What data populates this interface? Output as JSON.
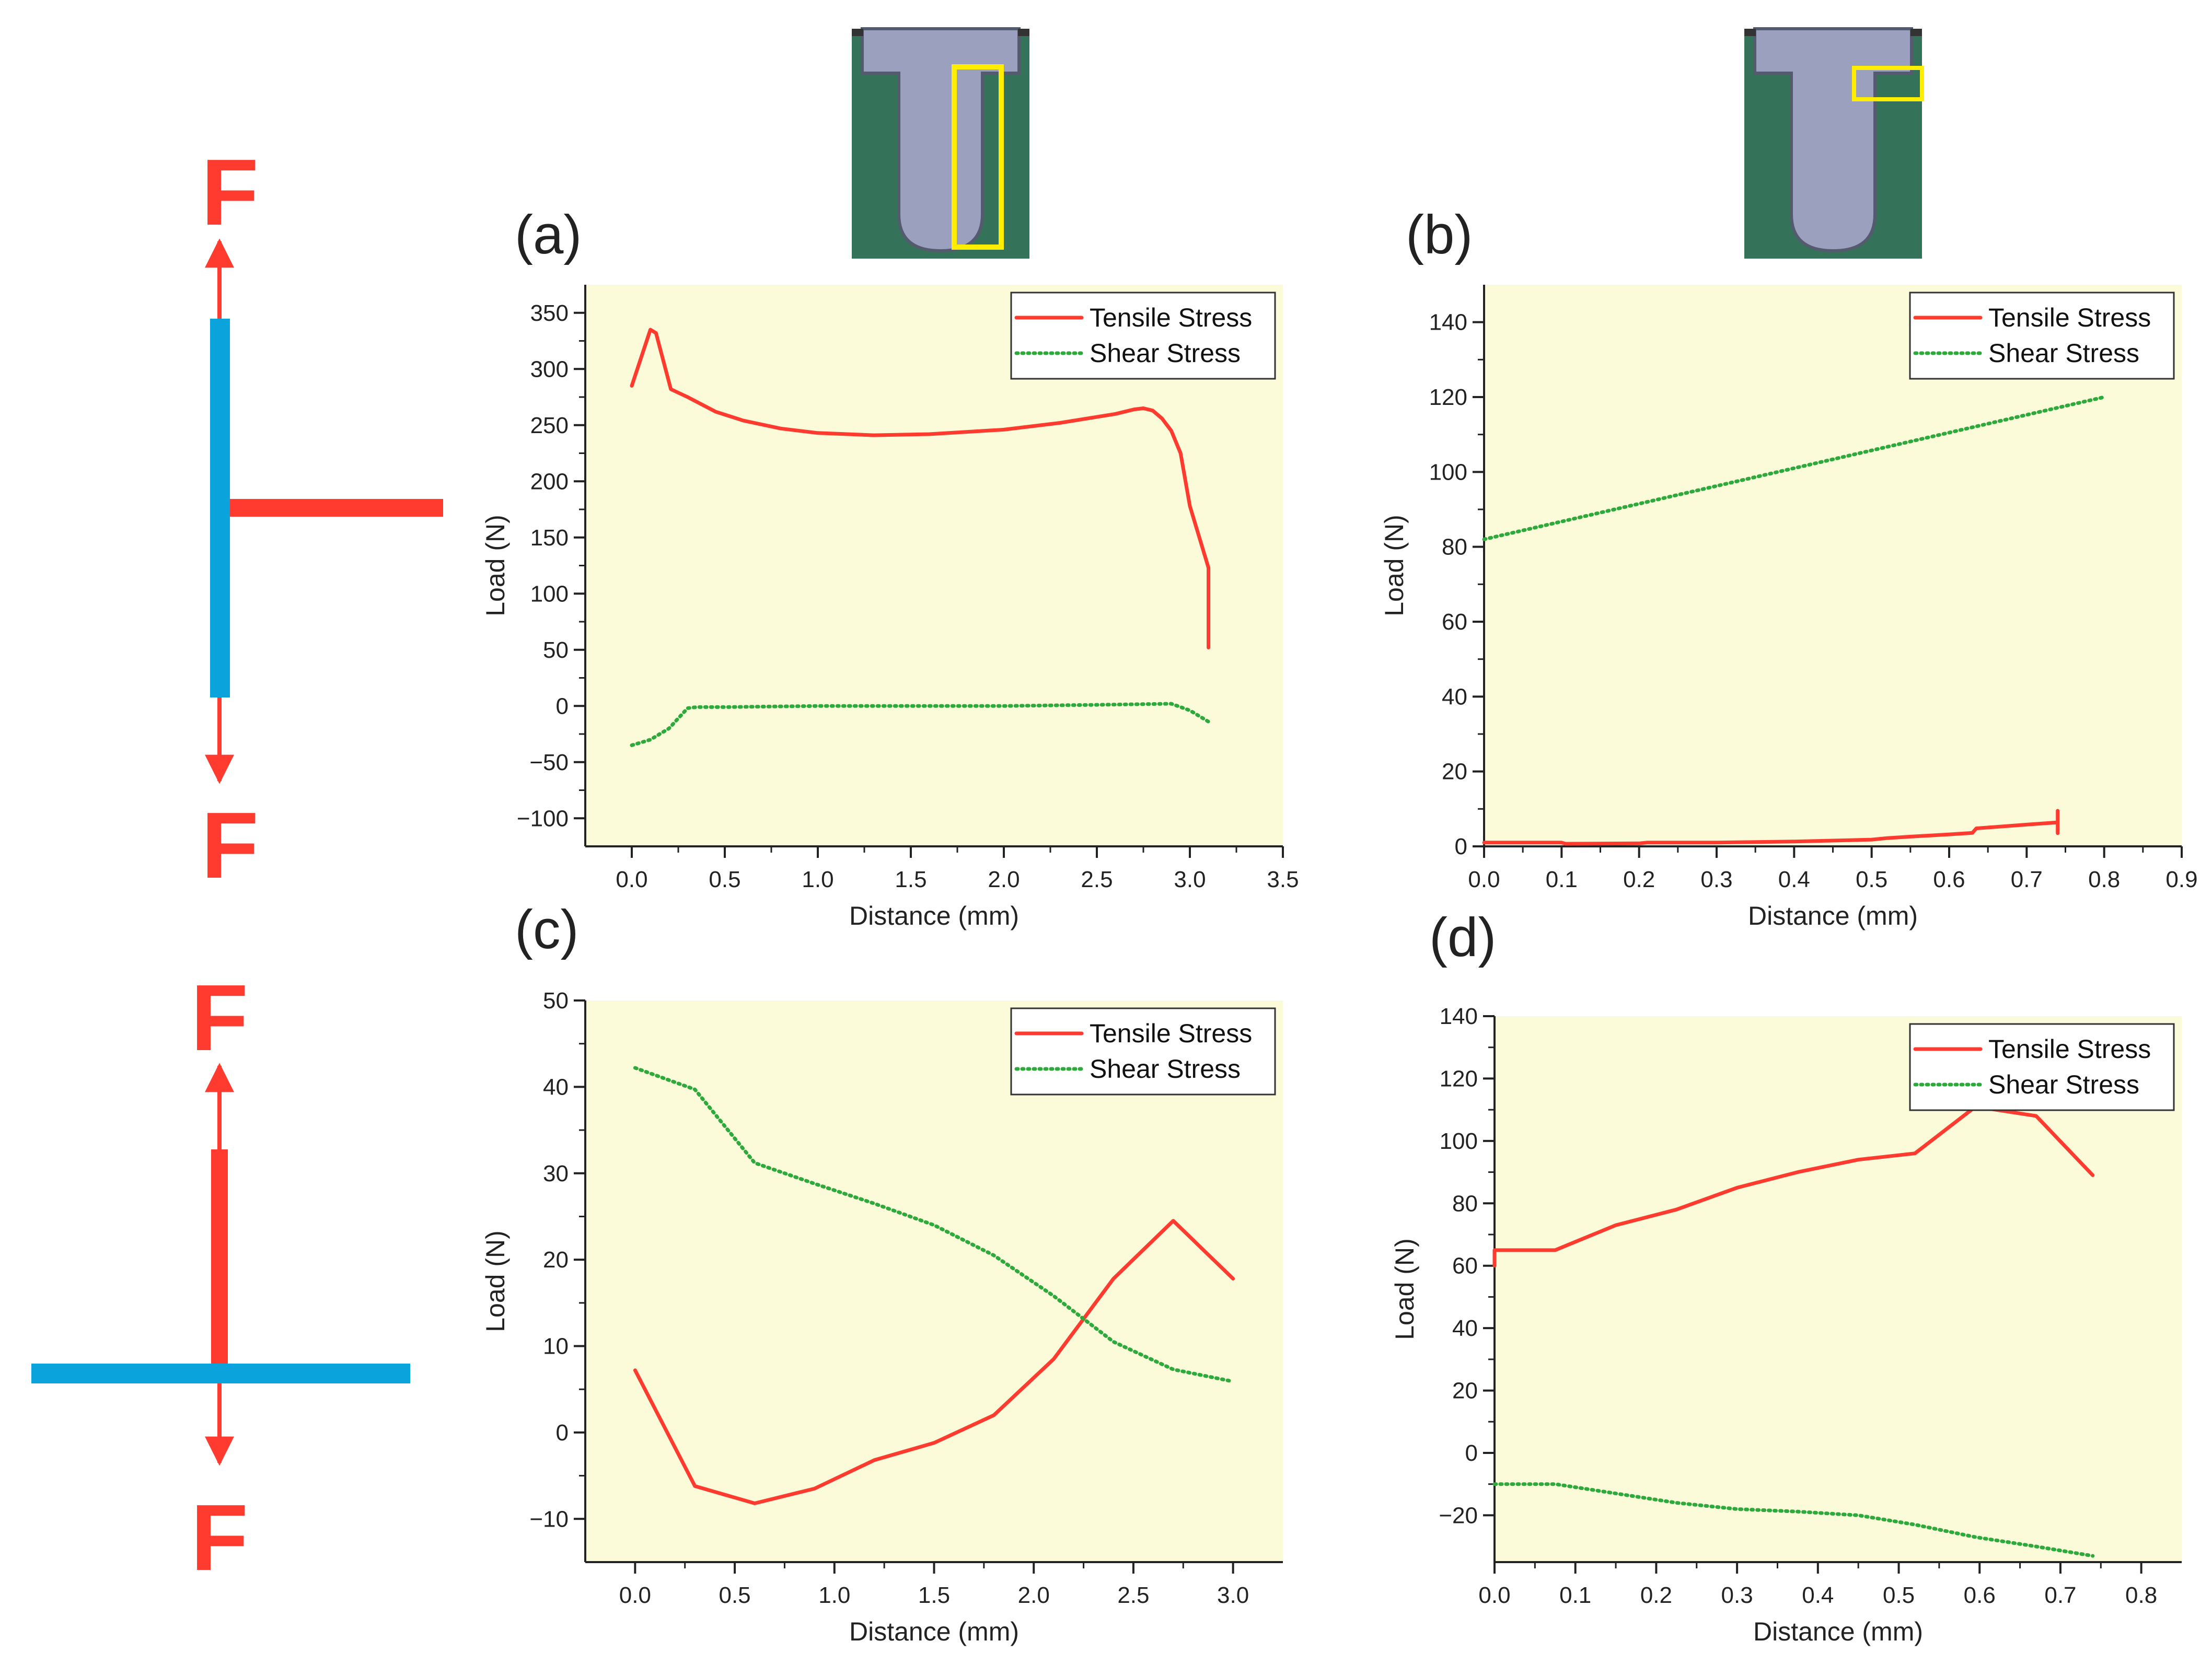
{
  "figure": {
    "force_label": "F",
    "colors": {
      "tensile": "#ff3b30",
      "shear": "#2eaa3c",
      "plot_bg": "#fbfad9",
      "beam": "#0aa3dc",
      "force": "#ff3b30",
      "mold_green": "#347259",
      "part_gray": "#9aa0bd",
      "highlight": "#ffee00"
    },
    "inset_icons": [
      "cross-section-a-icon",
      "cross-section-b-icon"
    ],
    "schematic_icons": [
      "t-joint-tension-icon",
      "t-joint-pull-icon"
    ]
  },
  "chart_data": [
    {
      "id": "a",
      "panel_label": "(a)",
      "type": "line",
      "xlabel": "Distance (mm)",
      "ylabel": "Load (N)",
      "xlim": [
        -0.25,
        3.5
      ],
      "ylim": [
        -125,
        375
      ],
      "xticks": [
        0.0,
        0.5,
        1.0,
        1.5,
        2.0,
        2.5,
        3.0,
        3.5
      ],
      "xtick_labels": [
        "0.0",
        "0.5",
        "1.0",
        "1.5",
        "2.0",
        "2.5",
        "3.0",
        "3.5"
      ],
      "yticks": [
        -100,
        -50,
        0,
        50,
        100,
        150,
        200,
        250,
        300,
        350
      ],
      "ytick_labels": [
        "−100",
        "−50",
        "0",
        "50",
        "100",
        "150",
        "200",
        "250",
        "300",
        "350"
      ],
      "legend_position": "top-right",
      "series": [
        {
          "name": "Tensile Stress",
          "style": "solid",
          "x": [
            0.0,
            0.1,
            0.13,
            0.21,
            0.3,
            0.45,
            0.6,
            0.8,
            1.0,
            1.3,
            1.6,
            2.0,
            2.3,
            2.6,
            2.7,
            2.75,
            2.8,
            2.85,
            2.9,
            2.95,
            3.0,
            3.1,
            3.1
          ],
          "y": [
            285,
            335,
            332,
            282,
            275,
            262,
            254,
            247,
            243,
            241,
            242,
            246,
            252,
            260,
            264,
            265,
            263,
            256,
            245,
            225,
            178,
            123,
            52
          ]
        },
        {
          "name": "Shear Stress",
          "style": "dotted",
          "x": [
            0.0,
            0.1,
            0.2,
            0.3,
            0.35,
            0.5,
            1.0,
            1.5,
            2.0,
            2.5,
            2.9,
            3.0,
            3.1
          ],
          "y": [
            -35,
            -30,
            -20,
            -2,
            -1,
            -1,
            0,
            0,
            0,
            1,
            2,
            -4,
            -14
          ]
        }
      ]
    },
    {
      "id": "b",
      "panel_label": "(b)",
      "type": "line",
      "xlabel": "Distance (mm)",
      "ylabel": "Load (N)",
      "xlim": [
        0.0,
        0.9
      ],
      "ylim": [
        0,
        150
      ],
      "xticks": [
        0.0,
        0.1,
        0.2,
        0.3,
        0.4,
        0.5,
        0.6,
        0.7,
        0.8,
        0.9
      ],
      "xtick_labels": [
        "0.0",
        "0.1",
        "0.2",
        "0.3",
        "0.4",
        "0.5",
        "0.6",
        "0.7",
        "0.8",
        "0.9"
      ],
      "yticks": [
        0,
        20,
        40,
        60,
        80,
        100,
        120,
        140
      ],
      "ytick_labels": [
        "0",
        "20",
        "40",
        "60",
        "80",
        "100",
        "120",
        "140"
      ],
      "legend_position": "top-right",
      "series": [
        {
          "name": "Tensile Stress",
          "style": "solid",
          "x": [
            0.0,
            0.1,
            0.105,
            0.2,
            0.21,
            0.3,
            0.4,
            0.5,
            0.52,
            0.55,
            0.6,
            0.63,
            0.635,
            0.7,
            0.74,
            0.74,
            0.74
          ],
          "y": [
            1.0,
            1.0,
            0.7,
            0.8,
            1.0,
            1.0,
            1.3,
            1.8,
            2.2,
            2.6,
            3.2,
            3.6,
            4.8,
            5.8,
            6.4,
            3.5,
            9.5
          ]
        },
        {
          "name": "Shear Stress",
          "style": "dotted",
          "x": [
            0.0,
            0.8
          ],
          "y": [
            82,
            120
          ]
        }
      ]
    },
    {
      "id": "c",
      "panel_label": "(c)",
      "type": "line",
      "xlabel": "Distance (mm)",
      "ylabel": "Load (N)",
      "xlim": [
        -0.25,
        3.25
      ],
      "ylim": [
        -15,
        50
      ],
      "xticks": [
        0.0,
        0.5,
        1.0,
        1.5,
        2.0,
        2.5,
        3.0
      ],
      "xtick_labels": [
        "0.0",
        "0.5",
        "1.0",
        "1.5",
        "2.0",
        "2.5",
        "3.0"
      ],
      "yticks": [
        -10,
        0,
        10,
        20,
        30,
        40,
        50
      ],
      "ytick_labels": [
        "−10",
        "0",
        "10",
        "20",
        "30",
        "40",
        "50"
      ],
      "legend_position": "top-right",
      "series": [
        {
          "name": "Tensile Stress",
          "style": "solid",
          "x": [
            0.0,
            0.3,
            0.6,
            0.9,
            1.2,
            1.5,
            1.8,
            2.1,
            2.4,
            2.7,
            3.0
          ],
          "y": [
            7.2,
            -6.2,
            -8.2,
            -6.5,
            -3.2,
            -1.2,
            2.0,
            8.5,
            17.8,
            24.5,
            17.8
          ]
        },
        {
          "name": "Shear Stress",
          "style": "dotted",
          "x": [
            0.0,
            0.3,
            0.6,
            0.9,
            1.2,
            1.5,
            1.8,
            2.1,
            2.4,
            2.7,
            3.0
          ],
          "y": [
            42.2,
            39.7,
            31.2,
            28.8,
            26.5,
            24.0,
            20.5,
            15.8,
            10.5,
            7.3,
            5.9
          ]
        }
      ]
    },
    {
      "id": "d",
      "panel_label": "(d)",
      "type": "line",
      "xlabel": "Distance (mm)",
      "ylabel": "Load (N)",
      "xlim": [
        0.0,
        0.85
      ],
      "ylim": [
        -35,
        140
      ],
      "xticks": [
        0.0,
        0.1,
        0.2,
        0.3,
        0.4,
        0.5,
        0.6,
        0.7,
        0.8
      ],
      "xtick_labels": [
        "0.0",
        "0.1",
        "0.2",
        "0.3",
        "0.4",
        "0.5",
        "0.6",
        "0.7",
        "0.8"
      ],
      "yticks": [
        -20,
        0,
        20,
        40,
        60,
        80,
        100,
        120,
        140
      ],
      "ytick_labels": [
        "−20",
        "0",
        "20",
        "40",
        "60",
        "80",
        "100",
        "120",
        "140"
      ],
      "legend_position": "top-right",
      "series": [
        {
          "name": "Tensile Stress",
          "style": "solid",
          "x": [
            0.0,
            0.0,
            0.075,
            0.15,
            0.225,
            0.3,
            0.375,
            0.45,
            0.52,
            0.595,
            0.67,
            0.74
          ],
          "y": [
            60,
            65,
            65,
            73,
            78,
            85,
            90,
            94,
            96,
            111,
            108,
            89
          ]
        },
        {
          "name": "Shear Stress",
          "style": "dotted",
          "x": [
            0.0,
            0.075,
            0.15,
            0.225,
            0.3,
            0.375,
            0.45,
            0.52,
            0.595,
            0.67,
            0.74
          ],
          "y": [
            -10,
            -10,
            -13,
            -16,
            -18,
            -18.8,
            -20,
            -23,
            -27,
            -30,
            -33
          ]
        }
      ]
    }
  ]
}
